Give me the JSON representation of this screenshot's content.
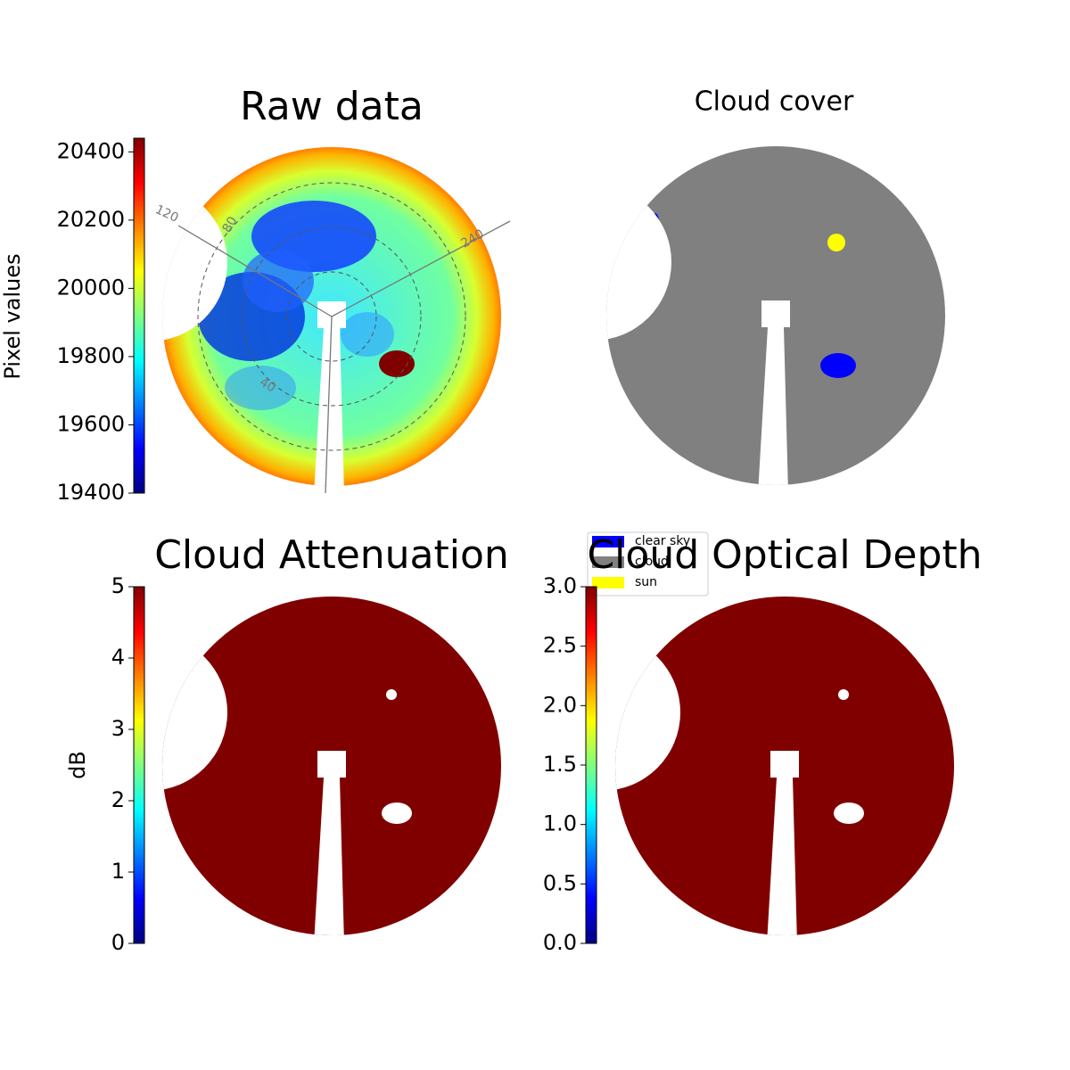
{
  "chart_data": [
    {
      "type": "image",
      "title": "Raw data",
      "colorbar_label": "Pixel values",
      "colormap": "jet",
      "clim": [
        19400,
        20440
      ],
      "cticks": [
        19400,
        19600,
        19800,
        20000,
        20200,
        20400
      ],
      "annotations": [
        "120",
        "80",
        "240",
        "40"
      ]
    },
    {
      "type": "image",
      "title": "Cloud cover",
      "legend": [
        {
          "label": "clear sky",
          "color": "#0000ff"
        },
        {
          "label": "cloud",
          "color": "#808080"
        },
        {
          "label": "sun",
          "color": "#ffff00"
        }
      ]
    },
    {
      "type": "image",
      "title": "Cloud Attenuation",
      "colorbar_label": "dB",
      "colormap": "jet",
      "clim": [
        0,
        5
      ],
      "cticks": [
        0,
        1,
        2,
        3,
        4,
        5
      ]
    },
    {
      "type": "image",
      "title": "Cloud Optical Depth",
      "colormap": "jet",
      "clim": [
        0,
        3
      ],
      "cticks": [
        {
          "value": 0,
          "label": "0.0"
        },
        0.5,
        {
          "value": 1,
          "label": "1.0"
        },
        1.5,
        {
          "value": 2,
          "label": "2.0"
        },
        2.5,
        {
          "value": 3,
          "label": "3.0"
        }
      ]
    }
  ]
}
